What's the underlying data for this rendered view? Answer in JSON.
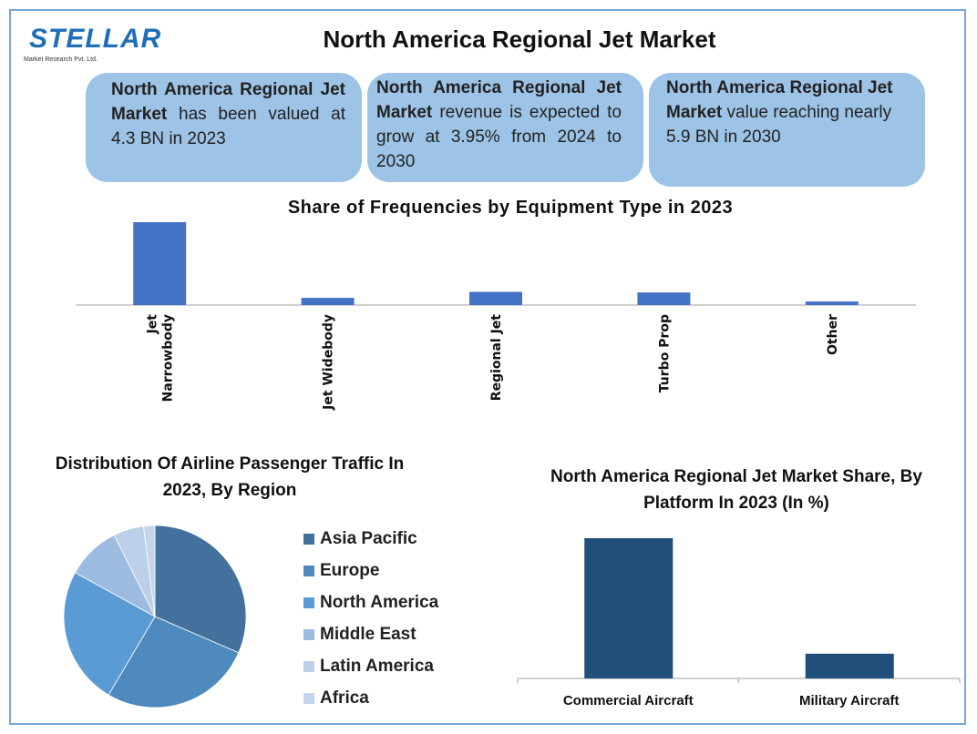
{
  "logo": {
    "name": "STELLAR",
    "subtitle": "Market Research Pvt. Ltd."
  },
  "header": {
    "title": "North America Regional Jet Market"
  },
  "info_boxes": [
    {
      "bold": "North America Regional Jet Market",
      "text": " has been valued at 4.3 BN in 2023"
    },
    {
      "bold": "North America Regional Jet Market",
      "text": " revenue is expected to grow at 3.95% from 2024 to 2030"
    },
    {
      "bold": "North America Regional Jet Market",
      "text": " value reaching nearly 5.9 BN in 2030"
    }
  ],
  "colors": {
    "frame": "#7aa7d6",
    "box": "#9dc3e6",
    "bar": "#4472c4",
    "platform_bar": "#1f4e79"
  },
  "chart_data": [
    {
      "type": "bar",
      "title": "Share of Frequencies by Equipment Type in 2023",
      "categories": [
        "Jet Narrowbody",
        "Jet Widebody",
        "Regional Jet",
        "Turbo Prop",
        "Other"
      ],
      "values": [
        69,
        6,
        11,
        10.5,
        3
      ],
      "ylim": [
        0,
        69
      ],
      "grid": false
    },
    {
      "type": "pie",
      "title": "Distribution Of Airline Passenger Traffic In 2023, By Region",
      "categories": [
        "Asia Pacific",
        "Europe",
        "North America",
        "Middle East",
        "Latin America",
        "Africa"
      ],
      "values": [
        31.5,
        27,
        24.5,
        9.6,
        5.4,
        2
      ],
      "colors": [
        "#41719c",
        "#4e8abe",
        "#5b9bd5",
        "#9dbbe0",
        "#bdd0ea",
        "#c5d5ec"
      ],
      "legend": "right"
    },
    {
      "type": "bar",
      "title": "North America Regional Jet Market Share, By Platform In 2023 (In %)",
      "categories": [
        "Commercial Aircraft",
        "Military Aircraft"
      ],
      "values": [
        85,
        15
      ],
      "ylim": [
        0,
        85
      ],
      "grid": false
    }
  ]
}
